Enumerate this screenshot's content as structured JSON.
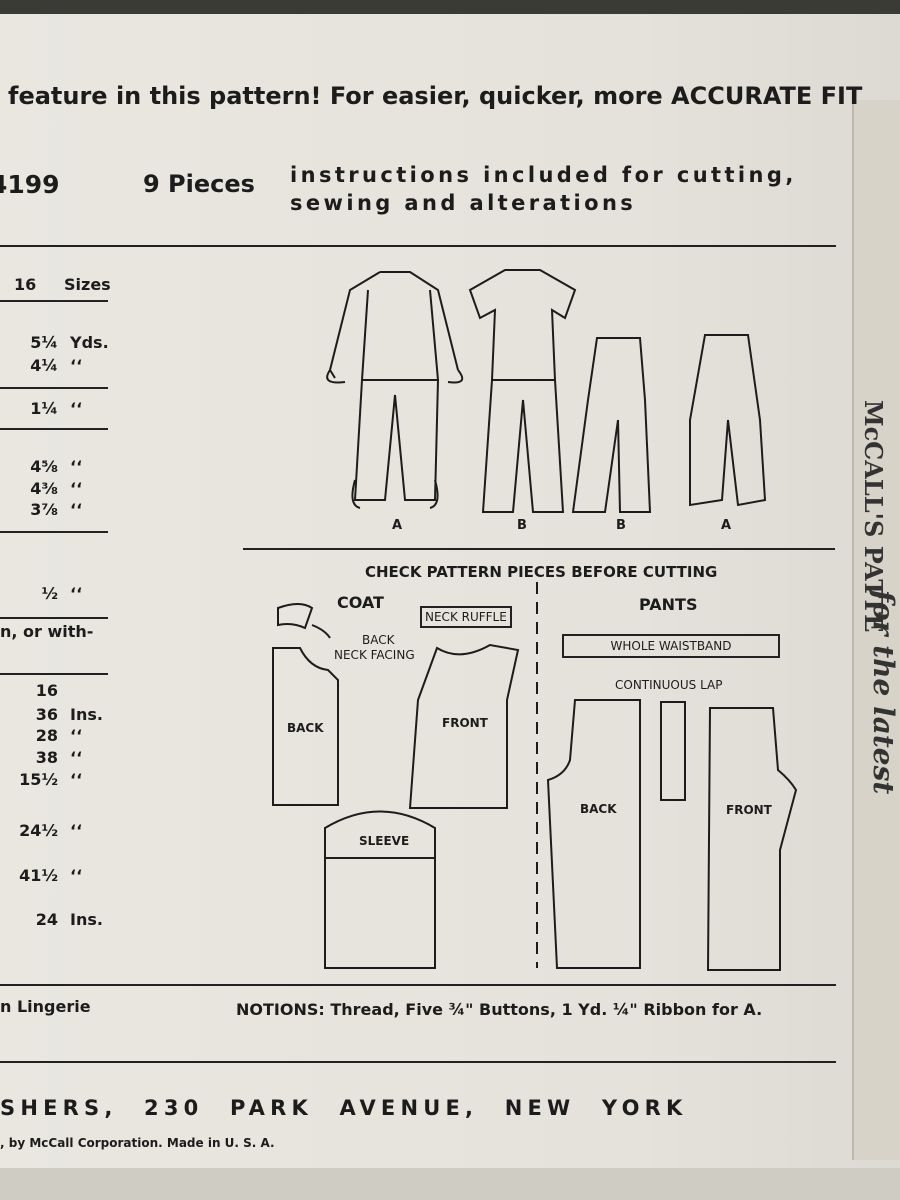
{
  "header": {
    "tagline": "feature in this pattern! For easier, quicker, more ACCURATE FIT",
    "number": "4199",
    "pieces": "9 Pieces",
    "instructions": [
      "instructions included for cutting,",
      "sewing and alterations"
    ]
  },
  "table": {
    "header": [
      "16",
      "Sizes"
    ],
    "rows": [
      [
        "5¼",
        "Yds."
      ],
      [
        "4¼",
        "‘‘"
      ],
      [
        "1¼",
        "‘‘"
      ],
      [
        "4⅝",
        "‘‘"
      ],
      [
        "4⅜",
        "‘‘"
      ],
      [
        "3⅞",
        "‘‘"
      ],
      [
        "½",
        "‘‘"
      ],
      [
        "n, or with-"
      ],
      [
        "16"
      ],
      [
        "36",
        "Ins."
      ],
      [
        "28",
        "‘‘"
      ],
      [
        "38",
        "‘‘"
      ],
      [
        "15½",
        "‘‘"
      ],
      [
        "24½",
        "‘‘"
      ],
      [
        "41½",
        "‘‘"
      ],
      [
        "24",
        "Ins."
      ],
      [
        "n Lingerie"
      ]
    ]
  },
  "views": [
    "A",
    "B",
    "B",
    "A"
  ],
  "pieces_chart": {
    "title": "CHECK PATTERN PIECES BEFORE CUTTING",
    "coat": {
      "title": "COAT",
      "neck_ruffle": "NECK RUFFLE",
      "facing": [
        "BACK",
        "NECK FACING"
      ],
      "back": "BACK",
      "front": "FRONT",
      "sleeve": "SLEEVE"
    },
    "pants": {
      "title": "PANTS",
      "waistband": "WHOLE WAISTBAND",
      "lap": "CONTINUOUS LAP",
      "back": "BACK",
      "front": "FRONT"
    }
  },
  "notions": "NOTIONS: Thread, Five ¾\" Buttons, 1 Yd. ¼\" Ribbon for A.",
  "footer": {
    "address": "SHERS, 230 PARK AVENUE, NEW YORK",
    "copyright": ", by McCall Corporation. Made in U. S. A."
  },
  "side": [
    "McCALL'S PATTE",
    "for the latest"
  ]
}
